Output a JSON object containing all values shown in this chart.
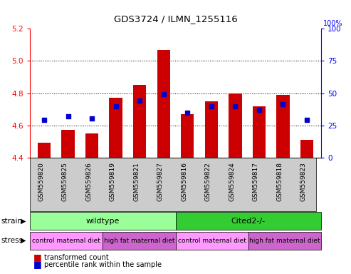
{
  "title": "GDS3724 / ILMN_1255116",
  "samples": [
    "GSM559820",
    "GSM559825",
    "GSM559826",
    "GSM559819",
    "GSM559821",
    "GSM559827",
    "GSM559816",
    "GSM559822",
    "GSM559824",
    "GSM559817",
    "GSM559818",
    "GSM559823"
  ],
  "bar_values": [
    4.49,
    4.57,
    4.55,
    4.77,
    4.85,
    5.07,
    4.67,
    4.75,
    4.8,
    4.72,
    4.79,
    4.51
  ],
  "dot_values": [
    4.635,
    4.655,
    4.645,
    4.72,
    4.755,
    4.795,
    4.68,
    4.72,
    4.72,
    4.695,
    4.73,
    4.635
  ],
  "y_min": 4.4,
  "y_max": 5.2,
  "y_ticks_left": [
    4.4,
    4.6,
    4.8,
    5.0,
    5.2
  ],
  "y_ticks_right": [
    0,
    25,
    50,
    75,
    100
  ],
  "bar_color": "#cc0000",
  "dot_color": "#0000cc",
  "bar_bottom": 4.4,
  "strain_groups": [
    {
      "label": "wildtype",
      "start": 0,
      "end": 6,
      "color": "#99ff99"
    },
    {
      "label": "Cited2-/-",
      "start": 6,
      "end": 12,
      "color": "#33cc33"
    }
  ],
  "stress_groups": [
    {
      "label": "control maternal diet",
      "start": 0,
      "end": 3,
      "color": "#ff99ff"
    },
    {
      "label": "high fat maternal diet",
      "start": 3,
      "end": 6,
      "color": "#cc66cc"
    },
    {
      "label": "control maternal diet",
      "start": 6,
      "end": 9,
      "color": "#ff99ff"
    },
    {
      "label": "high fat maternal diet",
      "start": 9,
      "end": 12,
      "color": "#cc66cc"
    }
  ],
  "legend_bar_label": "transformed count",
  "legend_dot_label": "percentile rank within the sample",
  "xlabel_strain": "strain",
  "xlabel_stress": "stress",
  "grid_lines": [
    4.6,
    4.8,
    5.0
  ],
  "right_label": "100%"
}
